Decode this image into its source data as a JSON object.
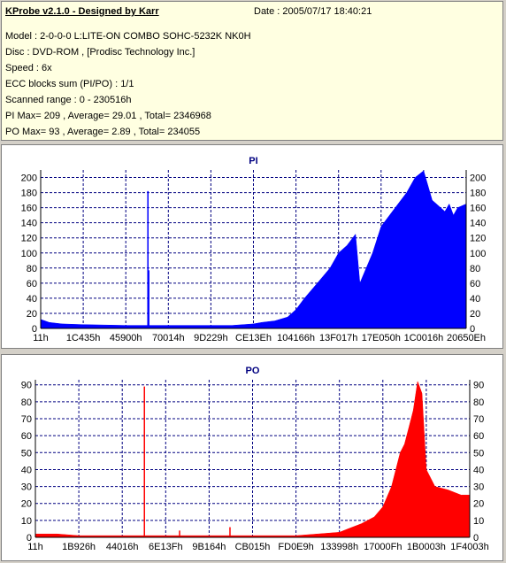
{
  "info": {
    "title": "KProbe v2.1.0 - Designed by Karr",
    "date": "Date : 2005/07/17 18:40:21",
    "model": "Model : 2-0-0-0 L:LITE-ON COMBO SOHC-5232K NK0H",
    "disc": "Disc : DVD-ROM ,  [Prodisc Technology Inc.]",
    "speed": "Speed : 6x",
    "ecc": "ECC blocks sum (PI/PO) : 1/1",
    "range": "Scanned range : 0 - 230516h",
    "pi_stats": "PI Max= 209 , Average= 29.01 , Total= 2346968",
    "po_stats": "PO Max= 93 , Average= 2.89 , Total= 234055"
  },
  "chart_data": [
    {
      "type": "area",
      "title": "PI",
      "color": "#0000ff",
      "ylim": [
        0,
        210
      ],
      "yticks": [
        0,
        20,
        40,
        60,
        80,
        100,
        120,
        140,
        160,
        180,
        200
      ],
      "xticklabels": [
        "11h",
        "1C435h",
        "45900h",
        "70014h",
        "9D229h",
        "CE13Eh",
        "104166h",
        "13F017h",
        "17E050h",
        "1C0016h",
        "20650Eh"
      ],
      "grid": true,
      "x": [
        0,
        0.02,
        0.05,
        0.1,
        0.2,
        0.3,
        0.35,
        0.4,
        0.45,
        0.5,
        0.52,
        0.55,
        0.58,
        0.6,
        0.62,
        0.65,
        0.68,
        0.7,
        0.72,
        0.74,
        0.75,
        0.78,
        0.8,
        0.82,
        0.84,
        0.86,
        0.88,
        0.9,
        0.92,
        0.94,
        0.95,
        0.96,
        0.97,
        0.98,
        1.0
      ],
      "values": [
        12,
        8,
        6,
        5,
        4,
        4,
        4,
        4,
        4,
        6,
        8,
        10,
        15,
        25,
        40,
        60,
        80,
        100,
        110,
        125,
        60,
        100,
        135,
        150,
        165,
        180,
        200,
        209,
        170,
        160,
        155,
        165,
        150,
        160,
        165
      ],
      "spikes": [
        {
          "x": 0.252,
          "value": 182
        },
        {
          "x": 0.254,
          "value": 77
        }
      ]
    },
    {
      "type": "area",
      "title": "PO",
      "color": "#ff0000",
      "ylim": [
        0,
        93
      ],
      "yticks": [
        0,
        10,
        20,
        30,
        40,
        50,
        60,
        70,
        80,
        90
      ],
      "xticklabels": [
        "11h",
        "1B926h",
        "44016h",
        "6E13Fh",
        "9B164h",
        "CB015h",
        "FD0E9h",
        "133998h",
        "17000Fh",
        "1B0003h",
        "1F4003h"
      ],
      "grid": true,
      "x": [
        0,
        0.05,
        0.1,
        0.2,
        0.3,
        0.4,
        0.5,
        0.6,
        0.65,
        0.7,
        0.72,
        0.75,
        0.78,
        0.8,
        0.82,
        0.84,
        0.85,
        0.86,
        0.87,
        0.88,
        0.89,
        0.9,
        0.92,
        0.95,
        0.98,
        1.0
      ],
      "values": [
        2,
        2,
        1,
        1,
        1,
        1,
        1,
        1,
        2,
        3,
        5,
        8,
        12,
        18,
        30,
        50,
        55,
        65,
        75,
        92,
        85,
        40,
        30,
        28,
        25,
        25
      ],
      "spikes": [
        {
          "x": 0.251,
          "value": 89
        },
        {
          "x": 0.448,
          "value": 6
        },
        {
          "x": 0.332,
          "value": 4
        }
      ]
    }
  ]
}
